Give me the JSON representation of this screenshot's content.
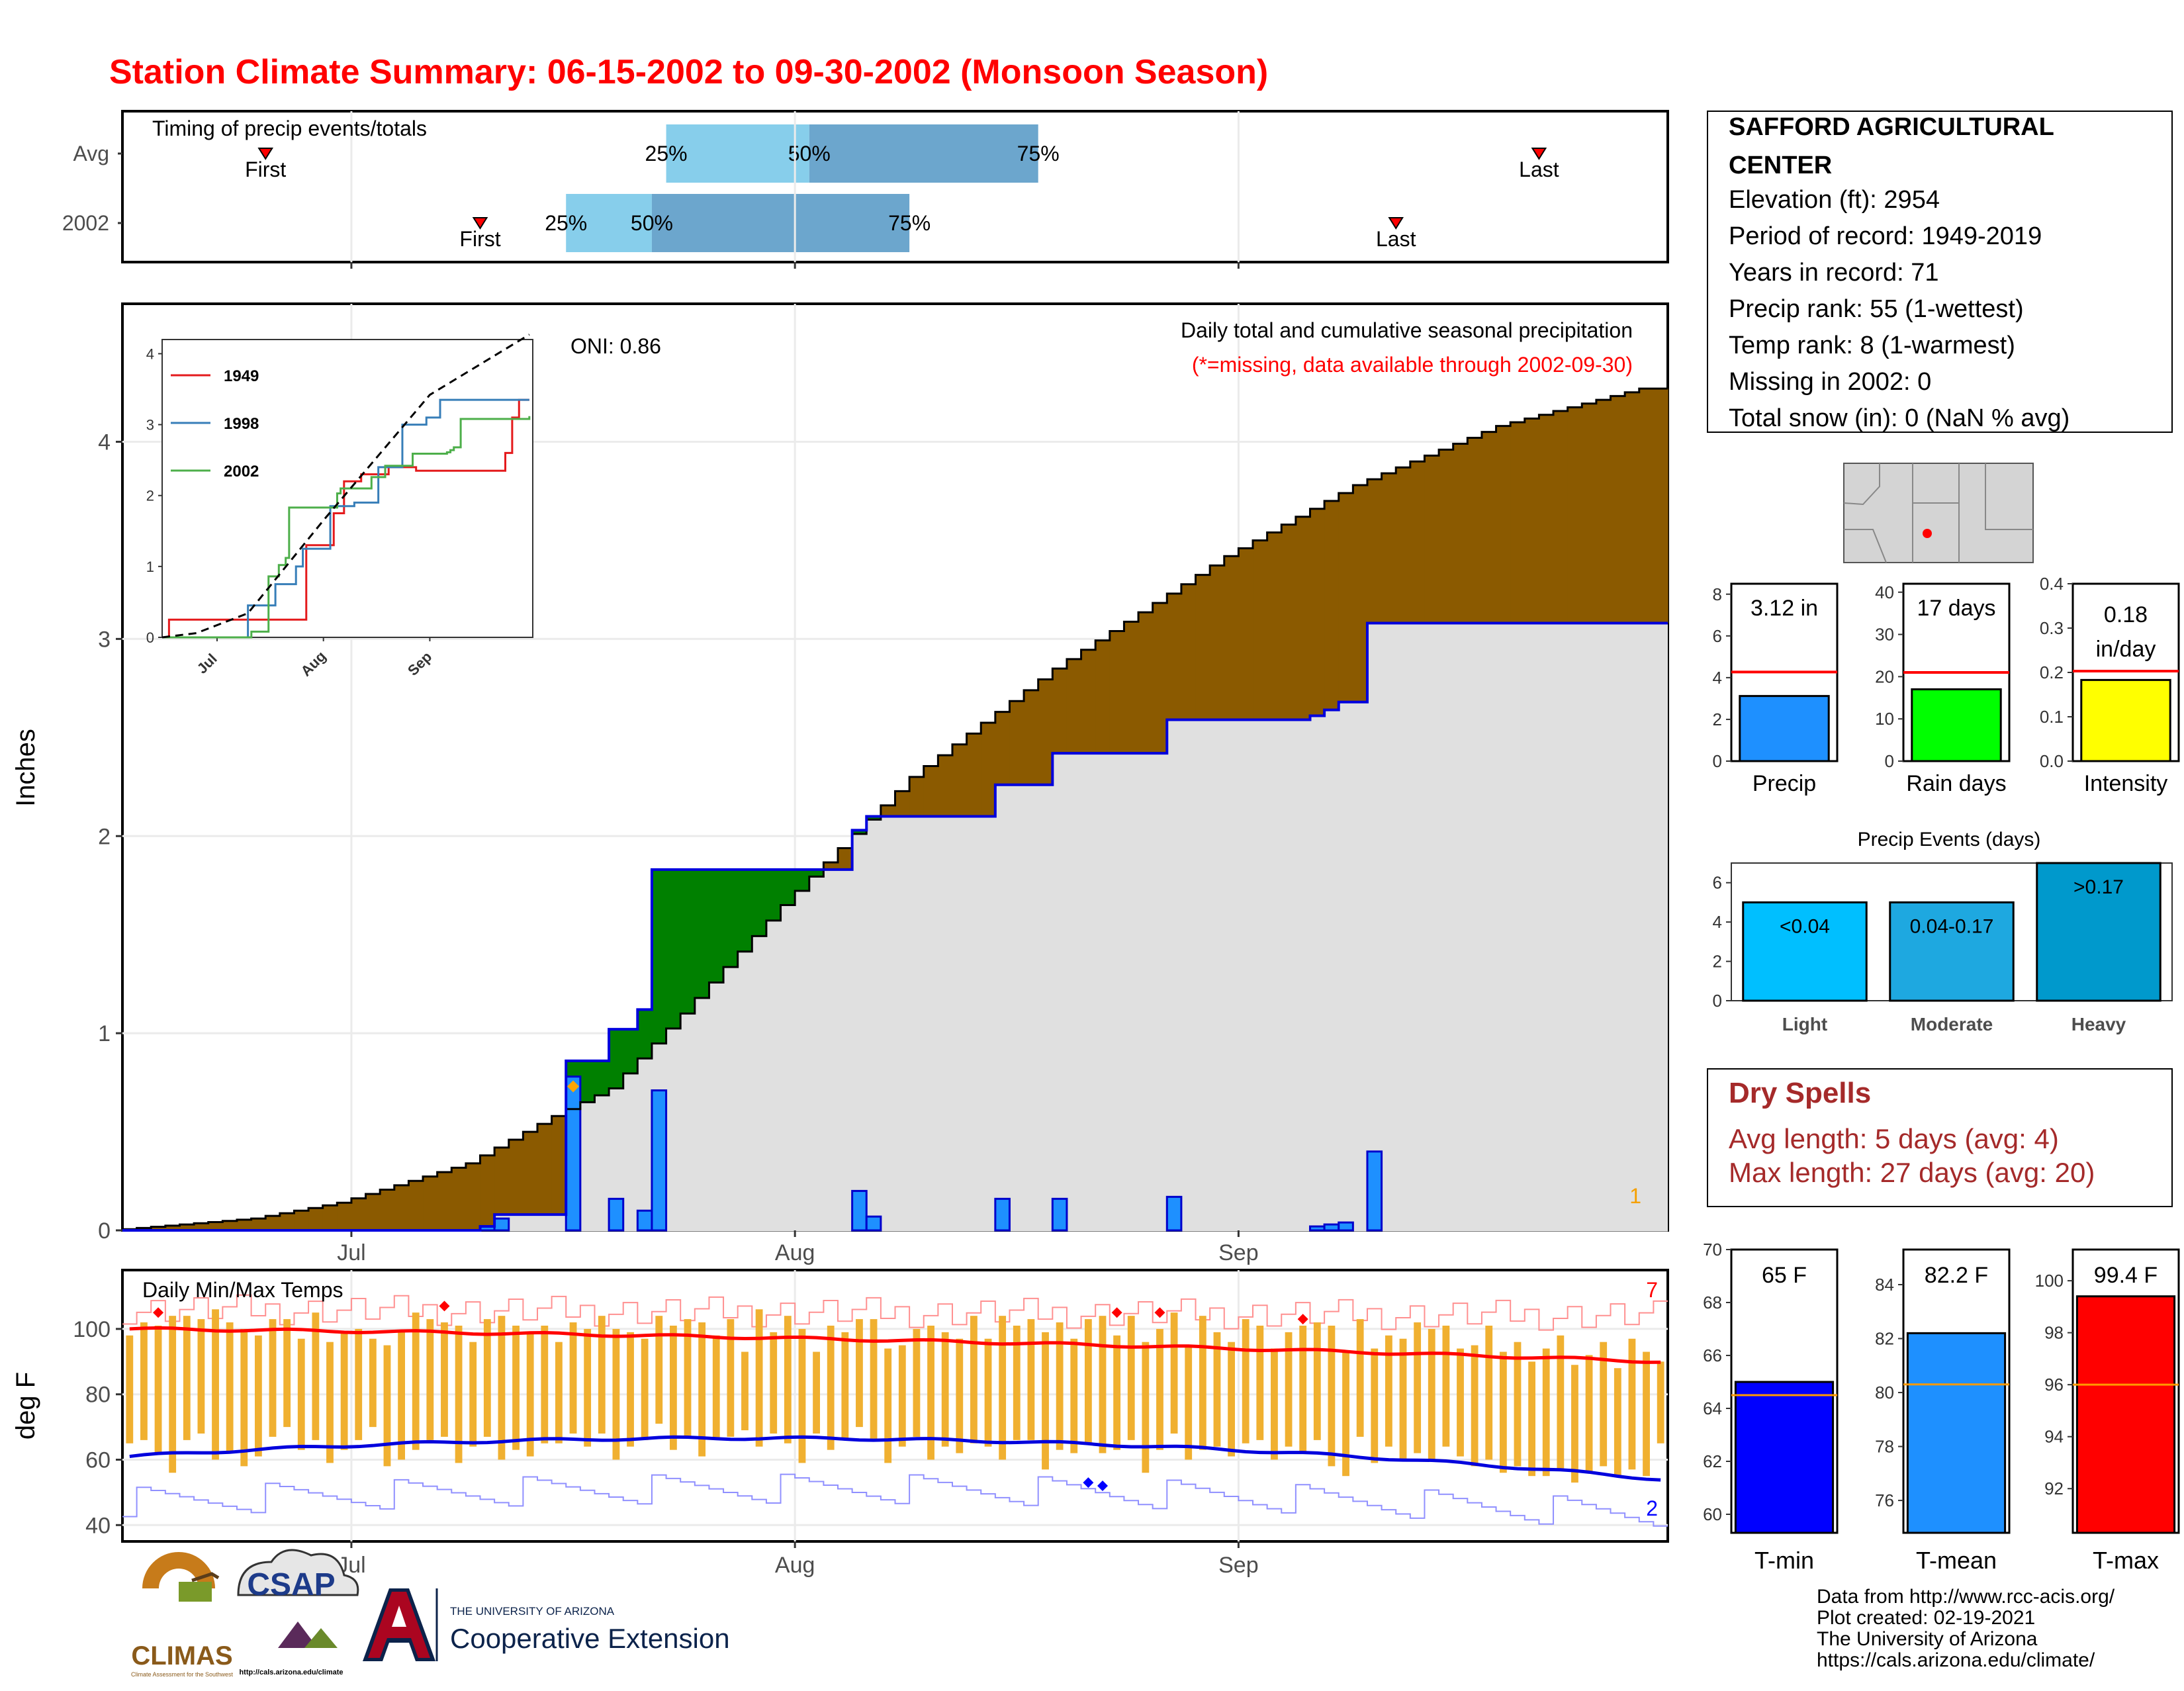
{
  "page_title": "Station Climate Summary: 06-15-2002 to 09-30-2002 (Monsoon Season)",
  "colors": {
    "title": "#ff0000",
    "dry_spell": "#a52a2a"
  },
  "timing": {
    "label": "Timing of precip events/totals",
    "rows": [
      {
        "year": "Avg",
        "first": "2002-06-25",
        "q25": "2002-07-23",
        "q50": "2002-08-02",
        "q75": "2002-08-18",
        "last": "2002-09-22",
        "first_label": "First",
        "last_label": "Last",
        "q25_label": "25%",
        "q50_label": "50%",
        "q75_label": "75%"
      },
      {
        "year": "2002",
        "first": "2002-07-10",
        "q25": "2002-07-16",
        "q50": "2002-07-22",
        "q75": "2002-08-09",
        "last": "2002-09-12",
        "first_label": "First",
        "last_label": "Last",
        "q25_label": "25%",
        "q50_label": "50%",
        "q75_label": "75%"
      }
    ],
    "x_ticks": [
      "Jul",
      "Aug",
      "Sep"
    ]
  },
  "station": {
    "name": "SAFFORD AGRICULTURAL CENTER",
    "lines": [
      "Elevation (ft): 2954",
      "Period of record: 1949-2019",
      "Years in record: 71",
      "Precip rank: 55 (1-wettest)",
      "Temp rank: 8 (1-warmest)",
      "Missing in 2002: 0",
      "Total snow (in): 0 (NaN % avg)"
    ]
  },
  "chart_data": [
    {
      "id": "precip-main",
      "type": "area",
      "title": "Daily total and cumulative seasonal precipitation",
      "subtitle": "(*=missing, data available through 2002-09-30)",
      "ylabel": "Inches",
      "ylim": [
        0,
        4.7
      ],
      "yticks": [
        0,
        1,
        2,
        3,
        4
      ],
      "x_ticks": [
        {
          "label": "Jul",
          "date": "2002-07-01"
        },
        {
          "label": "Aug",
          "date": "2002-08-01"
        },
        {
          "label": "Sep",
          "date": "2002-09-01"
        }
      ],
      "xrange": [
        "2002-06-15",
        "2002-09-30"
      ],
      "oni": "ONI: 0.86",
      "corner_note": "1",
      "avg_cumulative_knots": [
        {
          "date": "2002-06-15",
          "value": 0
        },
        {
          "date": "2002-06-25",
          "value": 0.06
        },
        {
          "date": "2002-07-01",
          "value": 0.14
        },
        {
          "date": "2002-07-10",
          "value": 0.34
        },
        {
          "date": "2002-07-16",
          "value": 0.58
        },
        {
          "date": "2002-07-20",
          "value": 0.72
        },
        {
          "date": "2002-07-25",
          "value": 1.1
        },
        {
          "date": "2002-08-01",
          "value": 1.65
        },
        {
          "date": "2002-08-10",
          "value": 2.3
        },
        {
          "date": "2002-08-20",
          "value": 2.85
        },
        {
          "date": "2002-09-01",
          "value": 3.42
        },
        {
          "date": "2002-09-10",
          "value": 3.78
        },
        {
          "date": "2002-09-20",
          "value": 4.08
        },
        {
          "date": "2002-09-30",
          "value": 4.27
        }
      ],
      "daily_2002": [
        {
          "date": "2002-07-10",
          "value": 0.02
        },
        {
          "date": "2002-07-11",
          "value": 0.06
        },
        {
          "date": "2002-07-16",
          "value": 0.78
        },
        {
          "date": "2002-07-19",
          "value": 0.16
        },
        {
          "date": "2002-07-21",
          "value": 0.1
        },
        {
          "date": "2002-07-22",
          "value": 0.71
        },
        {
          "date": "2002-08-05",
          "value": 0.2
        },
        {
          "date": "2002-08-06",
          "value": 0.07
        },
        {
          "date": "2002-08-15",
          "value": 0.16
        },
        {
          "date": "2002-08-19",
          "value": 0.16
        },
        {
          "date": "2002-08-27",
          "value": 0.17
        },
        {
          "date": "2002-09-06",
          "value": 0.02
        },
        {
          "date": "2002-09-07",
          "value": 0.03
        },
        {
          "date": "2002-09-08",
          "value": 0.04
        },
        {
          "date": "2002-09-10",
          "value": 0.4
        }
      ],
      "missing_marker": {
        "date": "2002-07-16",
        "value": 0.73
      }
    },
    {
      "id": "precip-inset",
      "type": "line",
      "x_ticks": [
        "Jul",
        "Aug",
        "Sep"
      ],
      "ylim": [
        0,
        4.2
      ],
      "yticks": [
        0,
        1,
        2,
        3,
        4
      ],
      "series": [
        {
          "name": "1949",
          "color": "#e41a1c",
          "steps": [
            [
              "2002-06-15",
              0
            ],
            [
              "2002-06-17",
              0.25
            ],
            [
              "2002-07-25",
              0.25
            ],
            [
              "2002-07-27",
              1.3
            ],
            [
              "2002-08-04",
              1.75
            ],
            [
              "2002-08-07",
              2.2
            ],
            [
              "2002-08-12",
              2.3
            ],
            [
              "2002-08-20",
              2.4
            ],
            [
              "2002-08-28",
              2.35
            ],
            [
              "2002-09-10",
              2.35
            ],
            [
              "2002-09-23",
              2.35
            ],
            [
              "2002-09-23",
              2.6
            ],
            [
              "2002-09-25",
              3.1
            ],
            [
              "2002-09-27",
              3.35
            ],
            [
              "2002-09-30",
              3.35
            ]
          ]
        },
        {
          "name": "1998",
          "color": "#377eb8",
          "steps": [
            [
              "2002-06-15",
              0
            ],
            [
              "2002-07-08",
              0
            ],
            [
              "2002-07-10",
              0.45
            ],
            [
              "2002-07-16",
              0.45
            ],
            [
              "2002-07-18",
              0.75
            ],
            [
              "2002-07-24",
              1.0
            ],
            [
              "2002-07-26",
              1.25
            ],
            [
              "2002-08-01",
              1.25
            ],
            [
              "2002-08-03",
              1.85
            ],
            [
              "2002-08-10",
              1.9
            ],
            [
              "2002-08-17",
              2.4
            ],
            [
              "2002-08-24",
              3.0
            ],
            [
              "2002-08-31",
              3.1
            ],
            [
              "2002-09-04",
              3.35
            ],
            [
              "2002-09-30",
              3.35
            ]
          ]
        },
        {
          "name": "2002",
          "color": "#4daf4a",
          "steps": [
            [
              "2002-06-15",
              0
            ],
            [
              "2002-07-10",
              0
            ],
            [
              "2002-07-11",
              0.08
            ],
            [
              "2002-07-16",
              0.86
            ],
            [
              "2002-07-19",
              1.02
            ],
            [
              "2002-07-21",
              1.12
            ],
            [
              "2002-07-22",
              1.83
            ],
            [
              "2002-08-05",
              2.03
            ],
            [
              "2002-08-06",
              2.1
            ],
            [
              "2002-08-15",
              2.26
            ],
            [
              "2002-08-19",
              2.42
            ],
            [
              "2002-08-27",
              2.59
            ],
            [
              "2002-09-06",
              2.61
            ],
            [
              "2002-09-07",
              2.64
            ],
            [
              "2002-09-08",
              2.68
            ],
            [
              "2002-09-10",
              3.08
            ],
            [
              "2002-09-30",
              3.12
            ]
          ]
        }
      ],
      "avg_dashed": [
        [
          "2002-06-15",
          0
        ],
        [
          "2002-06-25",
          0.06
        ],
        [
          "2002-07-10",
          0.34
        ],
        [
          "2002-08-01",
          1.65
        ],
        [
          "2002-09-01",
          3.42
        ],
        [
          "2002-09-30",
          4.27
        ]
      ]
    },
    {
      "id": "precip-total-bar",
      "type": "bar",
      "categories": [
        "Precip"
      ],
      "values": [
        3.12
      ],
      "value_label": "3.12 in",
      "avg": 4.27,
      "ylim": [
        0,
        8.5
      ],
      "yticks": [
        0,
        2,
        4,
        6,
        8
      ],
      "color": "#1e90ff"
    },
    {
      "id": "rain-days-bar",
      "type": "bar",
      "categories": [
        "Rain days"
      ],
      "values": [
        17
      ],
      "value_label": "17 days",
      "avg": 21,
      "ylim": [
        0,
        42
      ],
      "yticks": [
        0,
        10,
        20,
        30,
        40
      ],
      "color": "#00ff00"
    },
    {
      "id": "intensity-bar",
      "type": "bar",
      "categories": [
        "Intensity"
      ],
      "values": [
        0.183
      ],
      "value_label": "0.18",
      "value_label2": "in/day",
      "avg": 0.203,
      "ylim": [
        0,
        0.4
      ],
      "yticks": [
        "0.0",
        "0.1",
        "0.2",
        "0.3",
        "0.4"
      ],
      "color": "#ffff00"
    },
    {
      "id": "precip-events-bar",
      "type": "bar",
      "title": "Precip Events (days)",
      "categories": [
        "Light",
        "Moderate",
        "Heavy"
      ],
      "values": [
        5,
        5,
        7
      ],
      "bar_labels": [
        "<0.04",
        "0.04-0.17",
        ">0.17"
      ],
      "colors": [
        "#00bfff",
        "#1ea8e0",
        "#0099cc"
      ],
      "ylim": [
        0,
        7
      ],
      "yticks": [
        0,
        2,
        4,
        6
      ]
    },
    {
      "id": "temps-main",
      "type": "bar",
      "title": "Daily Min/Max Temps",
      "ylabel": "deg F",
      "ylim": [
        35,
        118
      ],
      "yticks": [
        40,
        60,
        80,
        100
      ],
      "x_ticks": [
        "Jul",
        "Aug",
        "Sep"
      ],
      "corner_top": "7",
      "corner_bottom": "2",
      "avg_max_start": 100,
      "avg_max_mid": 96,
      "avg_max_end": 90,
      "avg_min_start": 61,
      "avg_min_mid": 69,
      "avg_min_end": 54,
      "record_max_mean": 106,
      "record_min_mean": 47,
      "daily_max": [
        98,
        102,
        101,
        104,
        104,
        103,
        106,
        102,
        100,
        98,
        103,
        103,
        97,
        105,
        96,
        99,
        100,
        97,
        95,
        99,
        105,
        103,
        102,
        101,
        96,
        103,
        104,
        101,
        99,
        101,
        96,
        102,
        100,
        104,
        100,
        99,
        97,
        104,
        101,
        103,
        102,
        98,
        103,
        93,
        106,
        99,
        104,
        100,
        93,
        101,
        99,
        103,
        103,
        94,
        95,
        100,
        101,
        99,
        97,
        104,
        97,
        104,
        101,
        103,
        99,
        102,
        97,
        103,
        104,
        98,
        104,
        96,
        100,
        105,
        95,
        104,
        99,
        96,
        103,
        101,
        94,
        99,
        101,
        102,
        101,
        93,
        103,
        94,
        98,
        97,
        102,
        100,
        101,
        94,
        95,
        101,
        93,
        96,
        90,
        94,
        98,
        89,
        92,
        96,
        88,
        97,
        93,
        90
      ],
      "daily_min": [
        65,
        66,
        62,
        56,
        66,
        68,
        60,
        62,
        58,
        61,
        67,
        70,
        63,
        66,
        59,
        63,
        66,
        70,
        58,
        60,
        63,
        66,
        67,
        59,
        64,
        67,
        60,
        63,
        61,
        65,
        65,
        68,
        64,
        68,
        60,
        64,
        66,
        71,
        63,
        67,
        61,
        66,
        67,
        69,
        64,
        68,
        65,
        59,
        68,
        63,
        66,
        70,
        66,
        59,
        64,
        67,
        60,
        64,
        62,
        65,
        64,
        60,
        66,
        66,
        57,
        63,
        62,
        65,
        62,
        63,
        66,
        56,
        63,
        68,
        60,
        63,
        64,
        61,
        65,
        66,
        60,
        64,
        62,
        66,
        58,
        55,
        67,
        59,
        64,
        60,
        62,
        60,
        64,
        61,
        58,
        60,
        56,
        58,
        55,
        55,
        57,
        53,
        56,
        58,
        55,
        57,
        55,
        65
      ],
      "record_max_markers": [
        {
          "date": "2002-06-17",
          "value": 105
        },
        {
          "date": "2002-07-07",
          "value": 107
        },
        {
          "date": "2002-08-23",
          "value": 105
        },
        {
          "date": "2002-08-26",
          "value": 105
        },
        {
          "date": "2002-09-05",
          "value": 103
        }
      ],
      "record_min_markers": [
        {
          "date": "2002-08-21",
          "value": 53
        },
        {
          "date": "2002-08-22",
          "value": 52
        }
      ]
    },
    {
      "id": "tmin-bar",
      "type": "bar",
      "categories": [
        "T-min"
      ],
      "values": [
        65
      ],
      "value_label": "65 F",
      "avg": 64.5,
      "ylim": [
        59.3,
        70
      ],
      "yticks": [
        60,
        62,
        64,
        66,
        68,
        70
      ],
      "color": "#0000ff"
    },
    {
      "id": "tmean-bar",
      "type": "bar",
      "categories": [
        "T-mean"
      ],
      "values": [
        82.2
      ],
      "value_label": "82.2 F",
      "avg": 80.3,
      "ylim": [
        74.8,
        85.3
      ],
      "yticks": [
        76,
        78,
        80,
        82,
        84
      ],
      "color": "#1e90ff"
    },
    {
      "id": "tmax-bar",
      "type": "bar",
      "categories": [
        "T-max"
      ],
      "values": [
        99.4
      ],
      "value_label": "99.4 F",
      "avg": 96,
      "ylim": [
        90.3,
        101.2
      ],
      "yticks": [
        92,
        94,
        96,
        98,
        100
      ],
      "color": "#ff0000"
    }
  ],
  "dry_spells": {
    "title": "Dry Spells",
    "avg_line": "Avg length: 5 days (avg: 4)",
    "max_line": "Max length: 27 days (avg: 20)"
  },
  "footer": {
    "lines": [
      "Data from http://www.rcc-acis.org/",
      "Plot created: 02-19-2021",
      "The University of Arizona",
      "https://cals.arizona.edu/climate/"
    ],
    "logos": {
      "climas": "CLIMAS",
      "climas_sub": "Climate Assessment for the Southwest",
      "csap": "CSAP",
      "csap_url": "http://cals.arizona.edu/climate",
      "ua_small": "THE UNIVERSITY OF ARIZONA",
      "ua_big": "Cooperative Extension"
    }
  }
}
